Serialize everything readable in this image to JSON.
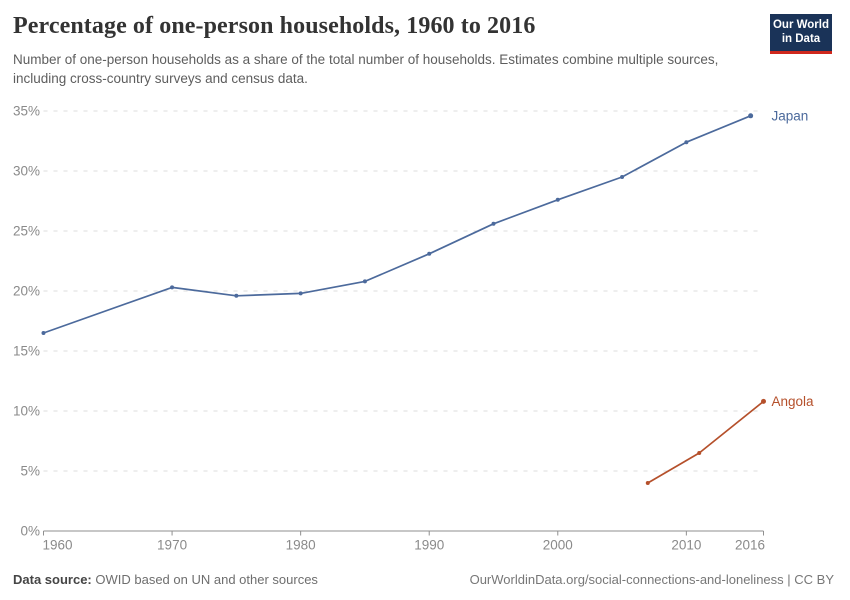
{
  "header": {
    "title": "Percentage of one-person households, 1960 to 2016",
    "subtitle": "Number of one-person households as a share of the total number of households. Estimates combine multiple sources, including cross-country surveys and census data."
  },
  "logo": {
    "line1": "Our World",
    "line2": "in Data",
    "background_color": "#1a3358",
    "accent_color": "#cf281d"
  },
  "chart_data": {
    "type": "line",
    "title": "Percentage of one-person households, 1960 to 2016",
    "subtitle": "Number of one-person households as a share of the total number of households. Estimates combine multiple sources, including cross-country surveys and census data.",
    "xlabel": "",
    "ylabel": "",
    "xlim": [
      1960,
      2016
    ],
    "ylim": [
      0,
      35
    ],
    "xticks": [
      1960,
      1970,
      1980,
      1990,
      2000,
      2010,
      2016
    ],
    "yticks": [
      0,
      5,
      10,
      15,
      20,
      25,
      30,
      35
    ],
    "ytick_suffix": "%",
    "grid": "horizontal-dashed",
    "legend_position": "line-end-labels",
    "series": [
      {
        "name": "Japan",
        "color": "#4C6A9C",
        "points": [
          [
            1960,
            16.5
          ],
          [
            1970,
            20.3
          ],
          [
            1975,
            19.6
          ],
          [
            1980,
            19.8
          ],
          [
            1985,
            20.8
          ],
          [
            1990,
            23.1
          ],
          [
            1995,
            25.6
          ],
          [
            2000,
            27.6
          ],
          [
            2005,
            29.5
          ],
          [
            2010,
            32.4
          ],
          [
            2015,
            34.6
          ]
        ]
      },
      {
        "name": "Angola",
        "color": "#B5502B",
        "points": [
          [
            2007,
            4.0
          ],
          [
            2011,
            6.5
          ],
          [
            2016,
            10.8
          ]
        ]
      }
    ]
  },
  "footer": {
    "source_label": "Data source:",
    "source_text": "OWID based on UN and other sources",
    "credit": "OurWorldinData.org/social-connections-and-loneliness | CC BY"
  }
}
